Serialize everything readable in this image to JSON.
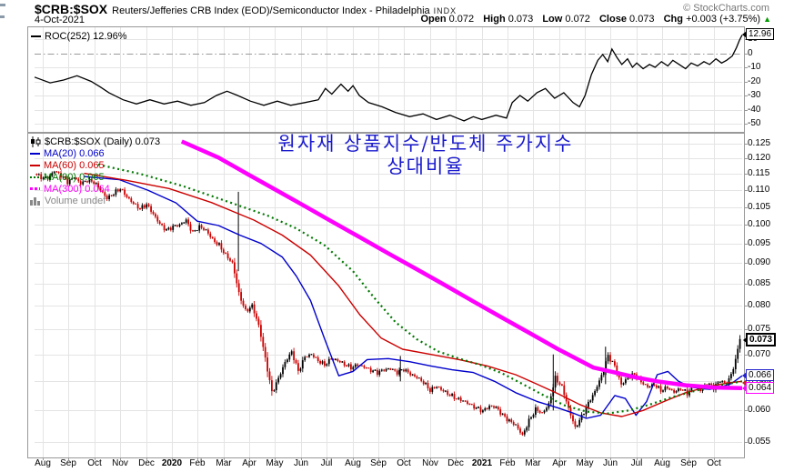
{
  "header": {
    "symbol": "$CRB:$SOX",
    "description": "Reuters/Jefferies CRB Index (EOD)/Semiconductor Index - Philadelphia",
    "exchange": "INDX",
    "copyright": "© StockCharts.com",
    "date": "4-Oct-2021",
    "quote": {
      "open_label": "Open",
      "open": "0.072",
      "high_label": "High",
      "high": "0.073",
      "low_label": "Low",
      "low": "0.072",
      "close_label": "Close",
      "close": "0.073",
      "chg_label": "Chg",
      "chg": "+0.003 (+3.75%)",
      "arrow": "▲"
    }
  },
  "colors": {
    "candle_up": "#000000",
    "candle_down": "#cc0000",
    "ma20": "#0000cc",
    "ma60": "#cc0000",
    "ma90": "#007700",
    "ma300": "#ff00ff",
    "roc_line": "#000000",
    "zero_line": "#999999",
    "grid": "#e4e4e4",
    "panel_border": "#999999",
    "annotation_text": "#1a1acd",
    "change_up": "#009900"
  },
  "roc_panel": {
    "legend": "ROC(252) 12.96%",
    "marker": {
      "text": "12.96",
      "value": 12.96
    }
  },
  "main_panel": {
    "legend": [
      {
        "label": "$CRB:$SOX (Daily) 0.073",
        "color": "#000000",
        "swatch": "candle"
      },
      {
        "label": "MA(20) 0.066",
        "color": "#0000cc",
        "swatch": "line"
      },
      {
        "label": "MA(60) 0.065",
        "color": "#cc0000",
        "swatch": "line"
      },
      {
        "label": "MA(90) 0.065",
        "color": "#007700",
        "swatch": "dots"
      },
      {
        "label": "MA(300) 0.064",
        "color": "#ff00ff",
        "swatch": "dash"
      },
      {
        "label": "Volume undef",
        "color": "#888888",
        "swatch": "bars"
      }
    ],
    "annotation": {
      "line1": "원자재 상품지수/반도체 주가지수",
      "line2": "상대비율"
    },
    "markers": [
      {
        "text": "0.073",
        "value": 0.073,
        "color": "#000000",
        "bold": true,
        "order": 4
      },
      {
        "text": "0.065",
        "value": 0.0648,
        "color": "#cc2222",
        "bold": false,
        "order": 1
      },
      {
        "text": "0.066",
        "value": 0.0661,
        "color": "#2222cc",
        "bold": false,
        "order": 2
      },
      {
        "text": "0.064",
        "value": 0.0637,
        "color": "#ff00ff",
        "bold": false,
        "order": 3
      }
    ]
  },
  "xaxis": {
    "labels": [
      {
        "t": "Aug"
      },
      {
        "t": "Sep"
      },
      {
        "t": "Oct"
      },
      {
        "t": "Nov"
      },
      {
        "t": "Dec"
      },
      {
        "t": "2020",
        "bold": true
      },
      {
        "t": "Feb"
      },
      {
        "t": "Mar"
      },
      {
        "t": "Apr"
      },
      {
        "t": "May"
      },
      {
        "t": "Jun"
      },
      {
        "t": "Jul"
      },
      {
        "t": "Aug"
      },
      {
        "t": "Sep"
      },
      {
        "t": "Oct"
      },
      {
        "t": "Nov"
      },
      {
        "t": "Dec"
      },
      {
        "t": "2021",
        "bold": true
      },
      {
        "t": "Feb"
      },
      {
        "t": "Mar"
      },
      {
        "t": "Apr"
      },
      {
        "t": "May"
      },
      {
        "t": "Jun"
      },
      {
        "t": "Jul"
      },
      {
        "t": "Aug"
      },
      {
        "t": "Sep"
      },
      {
        "t": "Oct"
      }
    ]
  },
  "chart_data": [
    {
      "type": "line",
      "panel": "roc",
      "title": "ROC(252)",
      "unit": "%",
      "last_value": 12.96,
      "ylim": [
        -55.8,
        18.4
      ],
      "yticks": [
        10,
        0,
        -10,
        -20,
        -30,
        -40,
        -50
      ],
      "zero_line_style": "dash-dot",
      "points": [
        [
          0.0,
          -17
        ],
        [
          0.022,
          -21
        ],
        [
          0.041,
          -19
        ],
        [
          0.06,
          -16
        ],
        [
          0.08,
          -20
        ],
        [
          0.093,
          -24
        ],
        [
          0.105,
          -28
        ],
        [
          0.125,
          -33
        ],
        [
          0.144,
          -36
        ],
        [
          0.163,
          -33
        ],
        [
          0.183,
          -36
        ],
        [
          0.202,
          -34
        ],
        [
          0.221,
          -37
        ],
        [
          0.24,
          -35
        ],
        [
          0.257,
          -30
        ],
        [
          0.272,
          -27
        ],
        [
          0.287,
          -30
        ],
        [
          0.305,
          -34
        ],
        [
          0.324,
          -37
        ],
        [
          0.343,
          -34
        ],
        [
          0.362,
          -37
        ],
        [
          0.382,
          -35
        ],
        [
          0.401,
          -33
        ],
        [
          0.411,
          -25
        ],
        [
          0.42,
          -29
        ],
        [
          0.433,
          -22
        ],
        [
          0.443,
          -27
        ],
        [
          0.45,
          -23
        ],
        [
          0.459,
          -30
        ],
        [
          0.472,
          -35
        ],
        [
          0.491,
          -38
        ],
        [
          0.51,
          -42
        ],
        [
          0.53,
          -45
        ],
        [
          0.549,
          -43
        ],
        [
          0.568,
          -47
        ],
        [
          0.587,
          -44
        ],
        [
          0.607,
          -48
        ],
        [
          0.62,
          -45
        ],
        [
          0.632,
          -47
        ],
        [
          0.652,
          -44
        ],
        [
          0.667,
          -46
        ],
        [
          0.675,
          -35
        ],
        [
          0.686,
          -30
        ],
        [
          0.697,
          -34
        ],
        [
          0.71,
          -28
        ],
        [
          0.722,
          -25
        ],
        [
          0.735,
          -32
        ],
        [
          0.748,
          -28
        ],
        [
          0.761,
          -35
        ],
        [
          0.77,
          -38
        ],
        [
          0.778,
          -30
        ],
        [
          0.787,
          -15
        ],
        [
          0.796,
          -5
        ],
        [
          0.803,
          -1
        ],
        [
          0.81,
          -6
        ],
        [
          0.816,
          3
        ],
        [
          0.823,
          -3
        ],
        [
          0.83,
          -8
        ],
        [
          0.838,
          -4
        ],
        [
          0.845,
          -10
        ],
        [
          0.851,
          -7
        ],
        [
          0.86,
          -11
        ],
        [
          0.869,
          -8
        ],
        [
          0.877,
          -10
        ],
        [
          0.886,
          -6
        ],
        [
          0.895,
          -9
        ],
        [
          0.902,
          -5
        ],
        [
          0.911,
          -8
        ],
        [
          0.92,
          -11
        ],
        [
          0.928,
          -7
        ],
        [
          0.937,
          -9
        ],
        [
          0.946,
          -6
        ],
        [
          0.954,
          -8
        ],
        [
          0.963,
          -4
        ],
        [
          0.971,
          -7
        ],
        [
          0.978,
          -5
        ],
        [
          0.986,
          -2
        ],
        [
          0.992,
          4
        ],
        [
          0.996,
          9
        ],
        [
          1.0,
          12.96
        ]
      ]
    },
    {
      "type": "candlestick",
      "panel": "price",
      "title": "$CRB:$SOX (Daily)",
      "scale": "log",
      "ylim": [
        0.0527,
        0.1284
      ],
      "yticks": [
        0.125,
        0.12,
        0.115,
        0.11,
        0.105,
        0.1,
        0.095,
        0.09,
        0.085,
        0.08,
        0.075,
        0.07,
        0.065,
        0.06,
        0.055
      ],
      "x_range": "Jul 2019 - Oct 2021",
      "last_close": 0.073,
      "weekly_closes": [
        0.115,
        0.114,
        0.1135,
        0.116,
        0.1145,
        0.1125,
        0.114,
        0.112,
        0.113,
        0.1125,
        0.11,
        0.1075,
        0.109,
        0.1105,
        0.108,
        0.106,
        0.1045,
        0.1058,
        0.103,
        0.1002,
        0.0985,
        0.0995,
        0.1,
        0.1012,
        0.0978,
        0.0995,
        0.0985,
        0.096,
        0.0945,
        0.092,
        0.09,
        0.0828,
        0.0788,
        0.08,
        0.0758,
        0.0692,
        0.063,
        0.0655,
        0.0685,
        0.0705,
        0.0668,
        0.0695,
        0.07,
        0.0688,
        0.068,
        0.0692,
        0.0688,
        0.0681,
        0.0675,
        0.068,
        0.0676,
        0.067,
        0.0666,
        0.0671,
        0.0673,
        0.0666,
        0.0672,
        0.0663,
        0.0657,
        0.0648,
        0.0634,
        0.0641,
        0.0633,
        0.0626,
        0.062,
        0.0616,
        0.061,
        0.0604,
        0.0599,
        0.0607,
        0.0605,
        0.0592,
        0.0583,
        0.0576,
        0.056,
        0.0583,
        0.0602,
        0.0595,
        0.061,
        0.0656,
        0.064,
        0.0603,
        0.0572,
        0.059,
        0.0612,
        0.0632,
        0.066,
        0.0697,
        0.0678,
        0.0644,
        0.0656,
        0.0663,
        0.0649,
        0.064,
        0.0644,
        0.0634,
        0.0639,
        0.0631,
        0.0637,
        0.0629,
        0.0641,
        0.0634,
        0.0647,
        0.0639,
        0.0651,
        0.0645,
        0.0672,
        0.073
      ],
      "spikes": [
        [
          0.288,
          0.1095,
          0.088
        ],
        [
          0.517,
          0.0697,
          0.065
        ],
        [
          0.733,
          0.07,
          0.06
        ],
        [
          0.807,
          0.0715,
          0.0645
        ]
      ],
      "series": [
        {
          "name": "MA(20)",
          "last": 0.066,
          "color": "#0000cc",
          "style": "solid",
          "points": [
            [
              0.07,
              0.1142
            ],
            [
              0.12,
              0.1132
            ],
            [
              0.16,
              0.11
            ],
            [
              0.2,
              0.1062
            ],
            [
              0.23,
              0.101
            ],
            [
              0.26,
              0.0998
            ],
            [
              0.29,
              0.0972
            ],
            [
              0.32,
              0.095
            ],
            [
              0.35,
              0.0915
            ],
            [
              0.37,
              0.0868
            ],
            [
              0.39,
              0.0812
            ],
            [
              0.41,
              0.073
            ],
            [
              0.43,
              0.066
            ],
            [
              0.45,
              0.0668
            ],
            [
              0.47,
              0.069
            ],
            [
              0.5,
              0.0692
            ],
            [
              0.53,
              0.0686
            ],
            [
              0.56,
              0.0678
            ],
            [
              0.59,
              0.0671
            ],
            [
              0.62,
              0.0666
            ],
            [
              0.65,
              0.065
            ],
            [
              0.68,
              0.063
            ],
            [
              0.71,
              0.0615
            ],
            [
              0.74,
              0.0604
            ],
            [
              0.76,
              0.0596
            ],
            [
              0.78,
              0.0587
            ],
            [
              0.8,
              0.0592
            ],
            [
              0.82,
              0.0625
            ],
            [
              0.835,
              0.062
            ],
            [
              0.85,
              0.0592
            ],
            [
              0.865,
              0.0615
            ],
            [
              0.88,
              0.0662
            ],
            [
              0.895,
              0.0668
            ],
            [
              0.91,
              0.065
            ],
            [
              0.925,
              0.0641
            ],
            [
              0.94,
              0.0637
            ],
            [
              0.955,
              0.0636
            ],
            [
              0.97,
              0.064
            ],
            [
              0.985,
              0.0646
            ],
            [
              1.0,
              0.066
            ]
          ]
        },
        {
          "name": "MA(60)",
          "last": 0.065,
          "color": "#cc0000",
          "style": "solid",
          "points": [
            [
              0.07,
              0.1152
            ],
            [
              0.13,
              0.113
            ],
            [
              0.19,
              0.1105
            ],
            [
              0.25,
              0.1063
            ],
            [
              0.31,
              0.1013
            ],
            [
              0.35,
              0.0972
            ],
            [
              0.39,
              0.092
            ],
            [
              0.43,
              0.0845
            ],
            [
              0.46,
              0.078
            ],
            [
              0.49,
              0.0732
            ],
            [
              0.52,
              0.071
            ],
            [
              0.56,
              0.07
            ],
            [
              0.6,
              0.069
            ],
            [
              0.64,
              0.0678
            ],
            [
              0.68,
              0.0662
            ],
            [
              0.71,
              0.0645
            ],
            [
              0.74,
              0.0628
            ],
            [
              0.77,
              0.061
            ],
            [
              0.8,
              0.0596
            ],
            [
              0.83,
              0.059
            ],
            [
              0.86,
              0.06
            ],
            [
              0.89,
              0.0615
            ],
            [
              0.92,
              0.063
            ],
            [
              0.95,
              0.064
            ],
            [
              0.98,
              0.0647
            ],
            [
              1.0,
              0.065
            ]
          ]
        },
        {
          "name": "MA(90)",
          "last": 0.065,
          "color": "#007700",
          "style": "dotted",
          "points": [
            [
              0.09,
              0.118
            ],
            [
              0.15,
              0.115
            ],
            [
              0.21,
              0.1112
            ],
            [
              0.27,
              0.1068
            ],
            [
              0.33,
              0.1025
            ],
            [
              0.37,
              0.099
            ],
            [
              0.41,
              0.0945
            ],
            [
              0.45,
              0.088
            ],
            [
              0.48,
              0.0818
            ],
            [
              0.51,
              0.0765
            ],
            [
              0.54,
              0.073
            ],
            [
              0.57,
              0.0706
            ],
            [
              0.6,
              0.0692
            ],
            [
              0.63,
              0.068
            ],
            [
              0.66,
              0.0665
            ],
            [
              0.69,
              0.0645
            ],
            [
              0.72,
              0.0625
            ],
            [
              0.75,
              0.0608
            ],
            [
              0.78,
              0.0598
            ],
            [
              0.81,
              0.0595
            ],
            [
              0.84,
              0.06
            ],
            [
              0.87,
              0.061
            ],
            [
              0.9,
              0.0622
            ],
            [
              0.93,
              0.0632
            ],
            [
              0.96,
              0.0641
            ],
            [
              1.0,
              0.065
            ]
          ]
        },
        {
          "name": "MA(300)",
          "last": 0.064,
          "color": "#ff00ff",
          "style": "thick",
          "points": [
            [
              0.208,
              0.1258
            ],
            [
              0.26,
              0.1203
            ],
            [
              0.3,
              0.1151
            ],
            [
              0.34,
              0.1102
            ],
            [
              0.38,
              0.1055
            ],
            [
              0.42,
              0.1009
            ],
            [
              0.46,
              0.0966
            ],
            [
              0.5,
              0.0924
            ],
            [
              0.54,
              0.0885
            ],
            [
              0.58,
              0.0847
            ],
            [
              0.62,
              0.081
            ],
            [
              0.66,
              0.0775
            ],
            [
              0.7,
              0.0742
            ],
            [
              0.74,
              0.071
            ],
            [
              0.79,
              0.0675
            ],
            [
              0.82,
              0.0666
            ],
            [
              0.85,
              0.0657
            ],
            [
              0.88,
              0.065
            ],
            [
              0.92,
              0.0643
            ],
            [
              0.96,
              0.0639
            ],
            [
              1.0,
              0.0638
            ]
          ]
        }
      ]
    }
  ]
}
